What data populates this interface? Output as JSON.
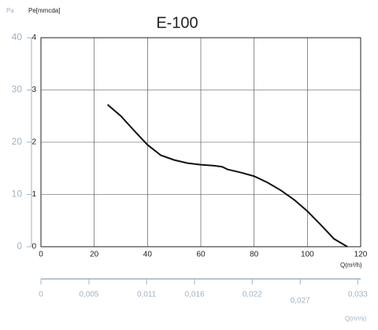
{
  "chart_data": {
    "type": "line",
    "title": "E-100",
    "y_label": "Pe[mmcda]",
    "y2_label": "Pa",
    "x_label": "Q(m³/h)",
    "x2_label": "Q(m³/s)",
    "x": [
      25,
      30,
      35,
      40,
      45,
      50,
      55,
      60,
      65,
      68,
      70,
      75,
      80,
      85,
      90,
      95,
      100,
      105,
      110,
      115
    ],
    "series": [
      {
        "color": "#111111",
        "values": [
          2.72,
          2.5,
          2.22,
          1.95,
          1.75,
          1.66,
          1.6,
          1.57,
          1.55,
          1.53,
          1.48,
          1.42,
          1.35,
          1.23,
          1.08,
          0.9,
          0.68,
          0.42,
          0.15,
          0
        ]
      }
    ],
    "xlim": [
      0,
      120
    ],
    "xticks": [
      0,
      20,
      40,
      60,
      80,
      100,
      120
    ],
    "ylim": [
      0,
      4
    ],
    "yticks": [
      0,
      1,
      2,
      3,
      4
    ],
    "y2lim": [
      0,
      40
    ],
    "y2ticks": [
      0,
      10,
      20,
      30,
      40
    ],
    "x2lim": [
      0,
      0.0333
    ],
    "x2ticks": [
      0,
      {
        "value": 0.005,
        "label": "0,005"
      },
      {
        "value": 0.011,
        "label": "0,011"
      },
      {
        "value": 0.016,
        "label": "0,016"
      },
      {
        "value": 0.022,
        "label": "0,022"
      },
      {
        "value": 0.027,
        "label": "0,027"
      },
      {
        "value": 0.033,
        "label": "0,033"
      }
    ],
    "grid": true
  }
}
